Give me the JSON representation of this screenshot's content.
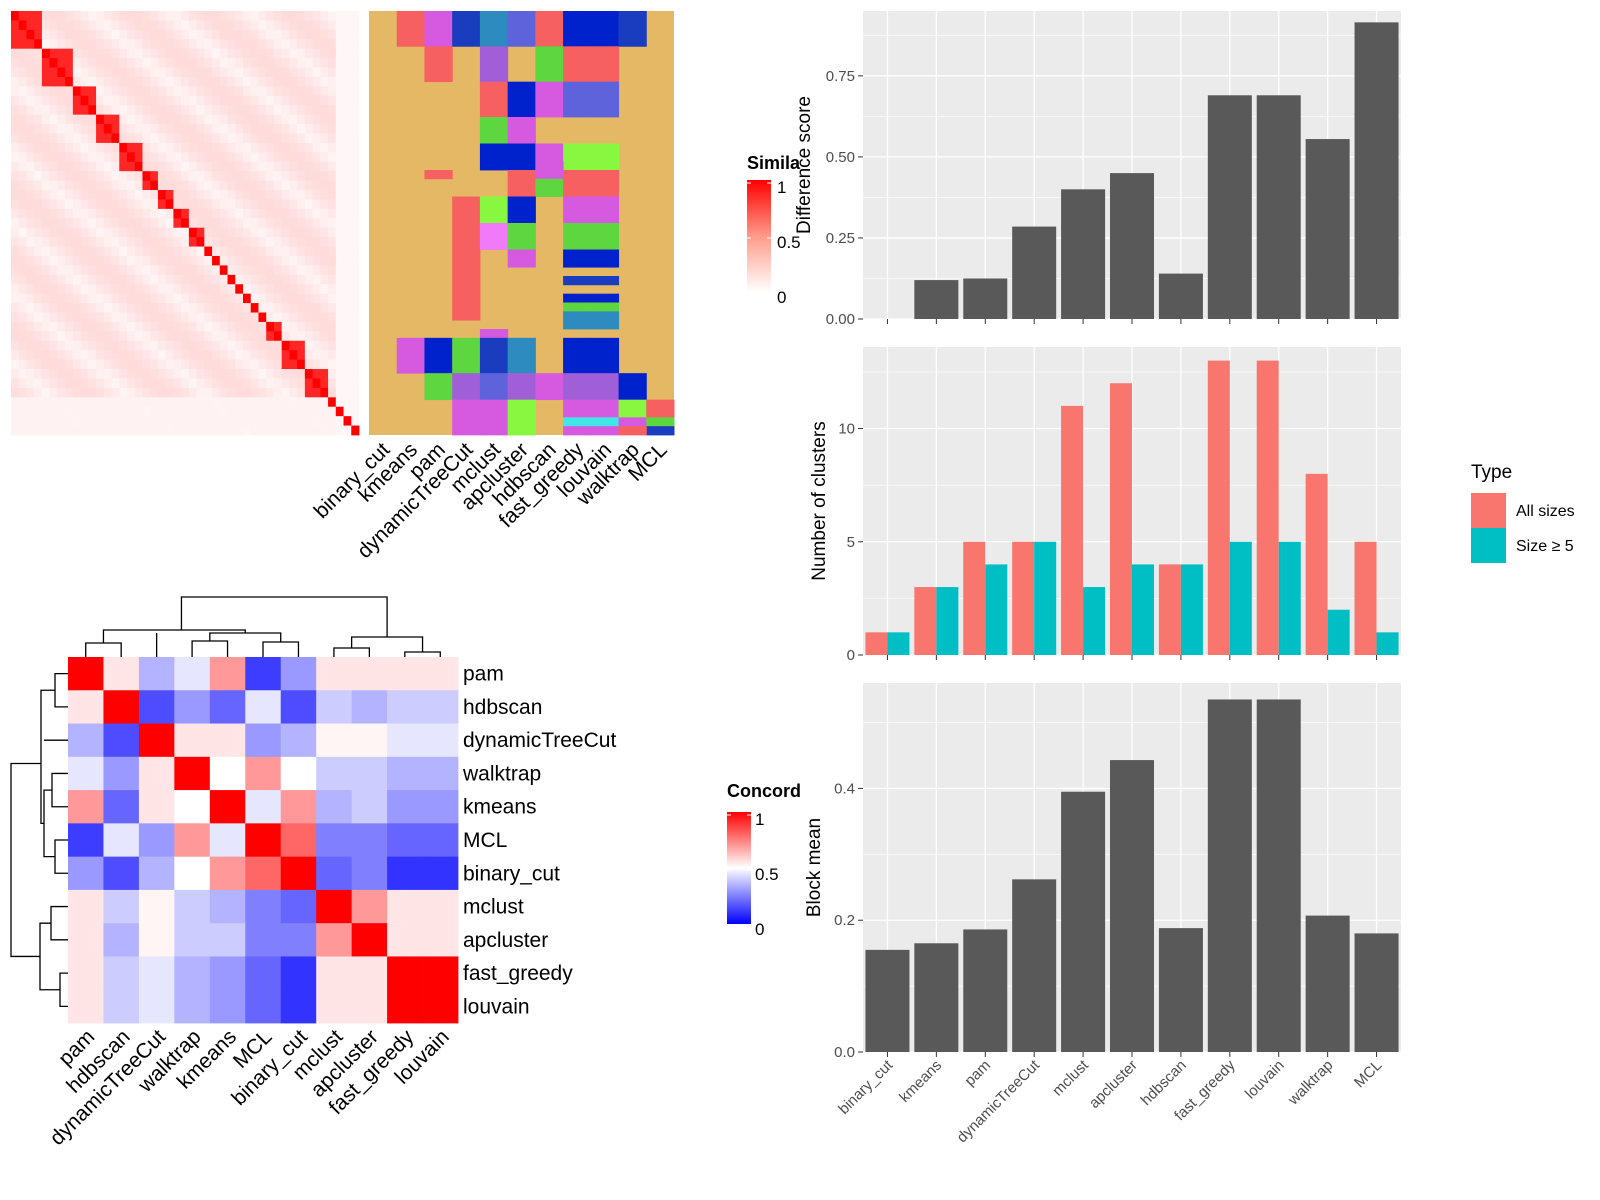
{
  "methods": [
    "binary_cut",
    "kmeans",
    "pam",
    "dynamicTreeCut",
    "mclust",
    "apcluster",
    "hdbscan",
    "fast_greedy",
    "louvain",
    "walktrap",
    "MCL"
  ],
  "colors": {
    "panel_bg": "#ebebeb",
    "grid": "#ffffff",
    "bar": "#595959",
    "all_sizes": "#f8766d",
    "size5": "#00bfc4",
    "sim_high": "#ff0000",
    "sim_low": "#ffffff",
    "conc_low": "#0000ff",
    "conc_mid": "#ffffff",
    "conc_high": "#ff0000",
    "cluster_palette": [
      "#e5b866",
      "#f76060",
      "#d65ae0",
      "#1a3cbf",
      "#2e8bbf",
      "#5e63db",
      "#5ed63f",
      "#0022cc",
      "#87f73f",
      "#f07af7",
      "#a05fd6",
      "#43e6e6"
    ]
  },
  "similarity_heatmap": {
    "legend_title": "Simila",
    "legend_ticks": [
      "1",
      "0.5",
      "0"
    ],
    "block_sizes": [
      4,
      4,
      3,
      3,
      3,
      2,
      2,
      2,
      2,
      1,
      1,
      1,
      1,
      1,
      1,
      1,
      1,
      2,
      3,
      3,
      1,
      1,
      1,
      1
    ]
  },
  "cluster_assignments": {
    "columns": [
      "binary_cut",
      "kmeans",
      "pam",
      "dynamicTreeCut",
      "mclust",
      "apcluster",
      "hdbscan",
      "fast_greedy",
      "louvain",
      "walktrap",
      "MCL"
    ]
  },
  "concordance_heatmap": {
    "legend_title": "Concord",
    "legend_ticks": [
      "1",
      "0.5",
      "0"
    ],
    "order": [
      "pam",
      "hdbscan",
      "dynamicTreeCut",
      "walktrap",
      "kmeans",
      "MCL",
      "binary_cut",
      "mclust",
      "apcluster",
      "fast_greedy",
      "louvain"
    ],
    "values": [
      [
        1.0,
        0.55,
        0.35,
        0.45,
        0.7,
        0.12,
        0.3,
        0.55,
        0.55,
        0.55,
        0.55
      ],
      [
        0.55,
        1.0,
        0.15,
        0.3,
        0.2,
        0.45,
        0.15,
        0.4,
        0.35,
        0.4,
        0.4
      ],
      [
        0.35,
        0.15,
        1.0,
        0.55,
        0.55,
        0.3,
        0.35,
        0.52,
        0.52,
        0.45,
        0.45
      ],
      [
        0.45,
        0.3,
        0.55,
        1.0,
        0.5,
        0.7,
        0.5,
        0.4,
        0.4,
        0.35,
        0.35
      ],
      [
        0.7,
        0.2,
        0.55,
        0.5,
        1.0,
        0.45,
        0.7,
        0.35,
        0.4,
        0.3,
        0.3
      ],
      [
        0.12,
        0.45,
        0.3,
        0.7,
        0.45,
        1.0,
        0.8,
        0.25,
        0.25,
        0.2,
        0.2
      ],
      [
        0.3,
        0.15,
        0.35,
        0.5,
        0.7,
        0.8,
        1.0,
        0.2,
        0.25,
        0.1,
        0.1
      ],
      [
        0.55,
        0.4,
        0.52,
        0.4,
        0.35,
        0.25,
        0.2,
        1.0,
        0.7,
        0.55,
        0.55
      ],
      [
        0.55,
        0.35,
        0.52,
        0.4,
        0.4,
        0.25,
        0.25,
        0.7,
        1.0,
        0.55,
        0.55
      ],
      [
        0.55,
        0.4,
        0.45,
        0.35,
        0.3,
        0.2,
        0.1,
        0.55,
        0.55,
        1.0,
        1.0
      ],
      [
        0.55,
        0.4,
        0.45,
        0.35,
        0.3,
        0.2,
        0.1,
        0.55,
        0.55,
        1.0,
        1.0
      ]
    ]
  },
  "chart_data": [
    {
      "type": "bar",
      "ylabel": "Difference score",
      "categories": [
        "binary_cut",
        "kmeans",
        "pam",
        "dynamicTreeCut",
        "mclust",
        "apcluster",
        "hdbscan",
        "fast_greedy",
        "louvain",
        "walktrap",
        "MCL"
      ],
      "values": [
        0.0,
        0.12,
        0.125,
        0.285,
        0.4,
        0.45,
        0.14,
        0.69,
        0.69,
        0.555,
        0.915
      ],
      "ylim": [
        0,
        0.95
      ],
      "yticks": [
        0.0,
        0.25,
        0.5,
        0.75
      ],
      "ytick_labels": [
        "0.00",
        "0.25",
        "0.50",
        "0.75"
      ]
    },
    {
      "type": "bar",
      "ylabel": "Number of clusters",
      "categories": [
        "binary_cut",
        "kmeans",
        "pam",
        "dynamicTreeCut",
        "mclust",
        "apcluster",
        "hdbscan",
        "fast_greedy",
        "louvain",
        "walktrap",
        "MCL"
      ],
      "series": [
        {
          "name": "All sizes",
          "values": [
            1,
            3,
            5,
            5,
            11,
            12,
            4,
            13,
            13,
            8,
            5
          ]
        },
        {
          "name": "Size ≥ 5",
          "values": [
            1,
            3,
            4,
            5,
            3,
            4,
            4,
            5,
            5,
            2,
            1
          ]
        }
      ],
      "ylim": [
        0,
        13.6
      ],
      "yticks": [
        0,
        5,
        10
      ],
      "ytick_labels": [
        "0",
        "5",
        "10"
      ],
      "legend_title": "Type",
      "legend_position": "right"
    },
    {
      "type": "bar",
      "ylabel": "Block mean",
      "categories": [
        "binary_cut",
        "kmeans",
        "pam",
        "dynamicTreeCut",
        "mclust",
        "apcluster",
        "hdbscan",
        "fast_greedy",
        "louvain",
        "walktrap",
        "MCL"
      ],
      "values": [
        0.155,
        0.165,
        0.186,
        0.262,
        0.395,
        0.443,
        0.188,
        0.535,
        0.535,
        0.207,
        0.18
      ],
      "ylim": [
        0,
        0.56
      ],
      "yticks": [
        0.0,
        0.2,
        0.4
      ],
      "ytick_labels": [
        "0.0",
        "0.2",
        "0.4"
      ]
    }
  ]
}
